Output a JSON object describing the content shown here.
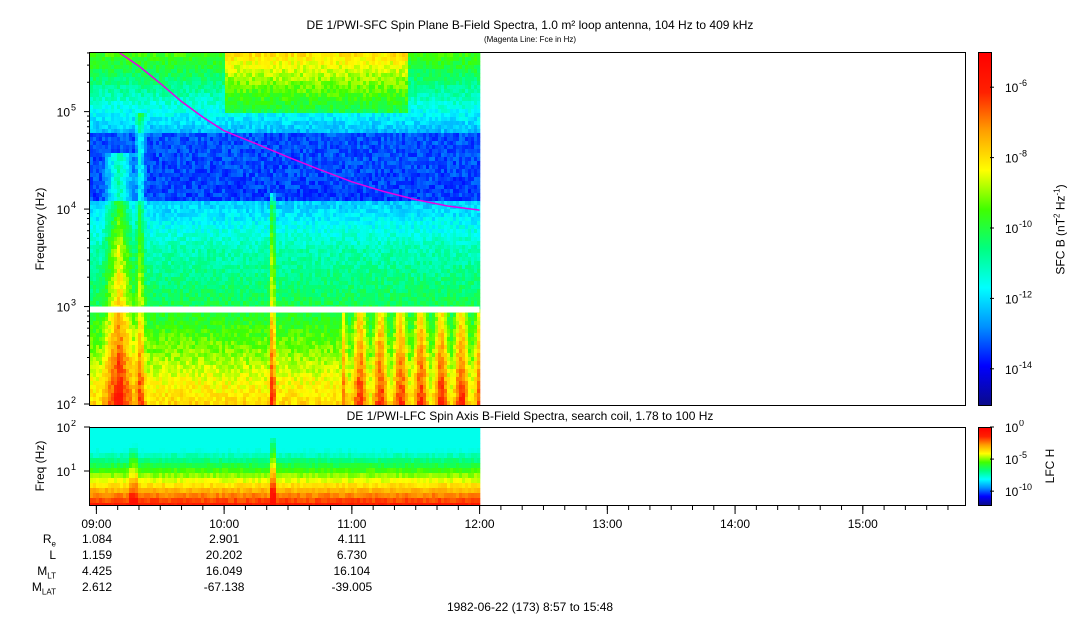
{
  "chart_data": [
    {
      "type": "heatmap",
      "title": "DE 1/PWI-SFC  Spin Plane B-Field Spectra, 1.0 m² loop antenna, 104 Hz to 409 kHz",
      "subtitle": "(Magenta Line: Fce in Hz)",
      "ylabel": "Frequency (Hz)",
      "yscale": "log",
      "ylim": [
        100,
        409000
      ],
      "y_ticks": [
        {
          "base": "10",
          "exp": "2",
          "value": 100
        },
        {
          "base": "10",
          "exp": "3",
          "value": 1000
        },
        {
          "base": "10",
          "exp": "4",
          "value": 10000
        },
        {
          "base": "10",
          "exp": "5",
          "value": 100000
        }
      ],
      "xlim": [
        "08:57",
        "15:48"
      ],
      "data_extent": [
        "08:57",
        "12:00"
      ],
      "colorbar": {
        "label": "SFC B (nT² Hz⁻¹)",
        "scale": "log",
        "range": [
          1e-15,
          1e-05
        ],
        "ticks": [
          {
            "base": "10",
            "exp": "-6",
            "value": 1e-06
          },
          {
            "base": "10",
            "exp": "-8",
            "value": 1e-08
          },
          {
            "base": "10",
            "exp": "-10",
            "value": 1e-10
          },
          {
            "base": "10",
            "exp": "-12",
            "value": 1e-12
          },
          {
            "base": "10",
            "exp": "-14",
            "value": 1e-14
          }
        ],
        "colors": [
          "#0a0a8a",
          "#0000ff",
          "#0090ff",
          "#00ffff",
          "#00ff80",
          "#40ff00",
          "#ffff00",
          "#ffa000",
          "#ff2000",
          "#ff0000"
        ]
      },
      "series": [
        {
          "name": "Fce",
          "color": "#e600e6",
          "points": [
            {
              "t": "09:11",
              "f": 409000
            },
            {
              "t": "09:20",
              "f": 300000
            },
            {
              "t": "09:30",
              "f": 200000
            },
            {
              "t": "09:40",
              "f": 130000
            },
            {
              "t": "09:50",
              "f": 90000
            },
            {
              "t": "10:00",
              "f": 65000
            },
            {
              "t": "10:15",
              "f": 48000
            },
            {
              "t": "10:30",
              "f": 35000
            },
            {
              "t": "10:45",
              "f": 26000
            },
            {
              "t": "11:00",
              "f": 19500
            },
            {
              "t": "11:15",
              "f": 15500
            },
            {
              "t": "11:30",
              "f": 12800
            },
            {
              "t": "11:45",
              "f": 11000
            },
            {
              "t": "12:00",
              "f": 10000
            }
          ]
        }
      ]
    },
    {
      "type": "heatmap",
      "title": "DE 1/PWI-LFC  Spin Axis B-Field Spectra, search coil, 1.78 to 100 Hz",
      "ylabel": "Freq (Hz)",
      "yscale": "log",
      "ylim": [
        1.78,
        100
      ],
      "y_ticks": [
        {
          "base": "10",
          "exp": "1",
          "value": 10
        },
        {
          "base": "10",
          "exp": "2",
          "value": 100
        }
      ],
      "xlim": [
        "08:57",
        "15:48"
      ],
      "data_extent": [
        "08:57",
        "12:00"
      ],
      "colorbar": {
        "label": "LFC H",
        "scale": "log",
        "range": [
          1e-12,
          1
        ],
        "ticks": [
          {
            "base": "10",
            "exp": "0",
            "value": 1
          },
          {
            "base": "10",
            "exp": "-5",
            "value": 1e-05
          },
          {
            "base": "10",
            "exp": "-10",
            "value": 1e-10
          }
        ]
      }
    }
  ],
  "x_axis": {
    "ticks": [
      "09:00",
      "10:00",
      "11:00",
      "12:00",
      "13:00",
      "14:00",
      "15:00"
    ],
    "start": "08:57",
    "end": "15:48"
  },
  "ephemeris": {
    "rows": [
      {
        "label": "R",
        "sub": "e",
        "values": [
          "1.084",
          "2.901",
          "4.111"
        ]
      },
      {
        "label": "L",
        "sub": "",
        "values": [
          "1.159",
          "20.202",
          "6.730"
        ]
      },
      {
        "label": "M",
        "sub": "LT",
        "values": [
          "4.425",
          "16.049",
          "16.104"
        ]
      },
      {
        "label": "M",
        "sub": "LAT",
        "values": [
          "2.612",
          "-67.138",
          "-39.005"
        ]
      }
    ]
  },
  "footer": "1982-06-22 (173) 8:57 to 15:48"
}
